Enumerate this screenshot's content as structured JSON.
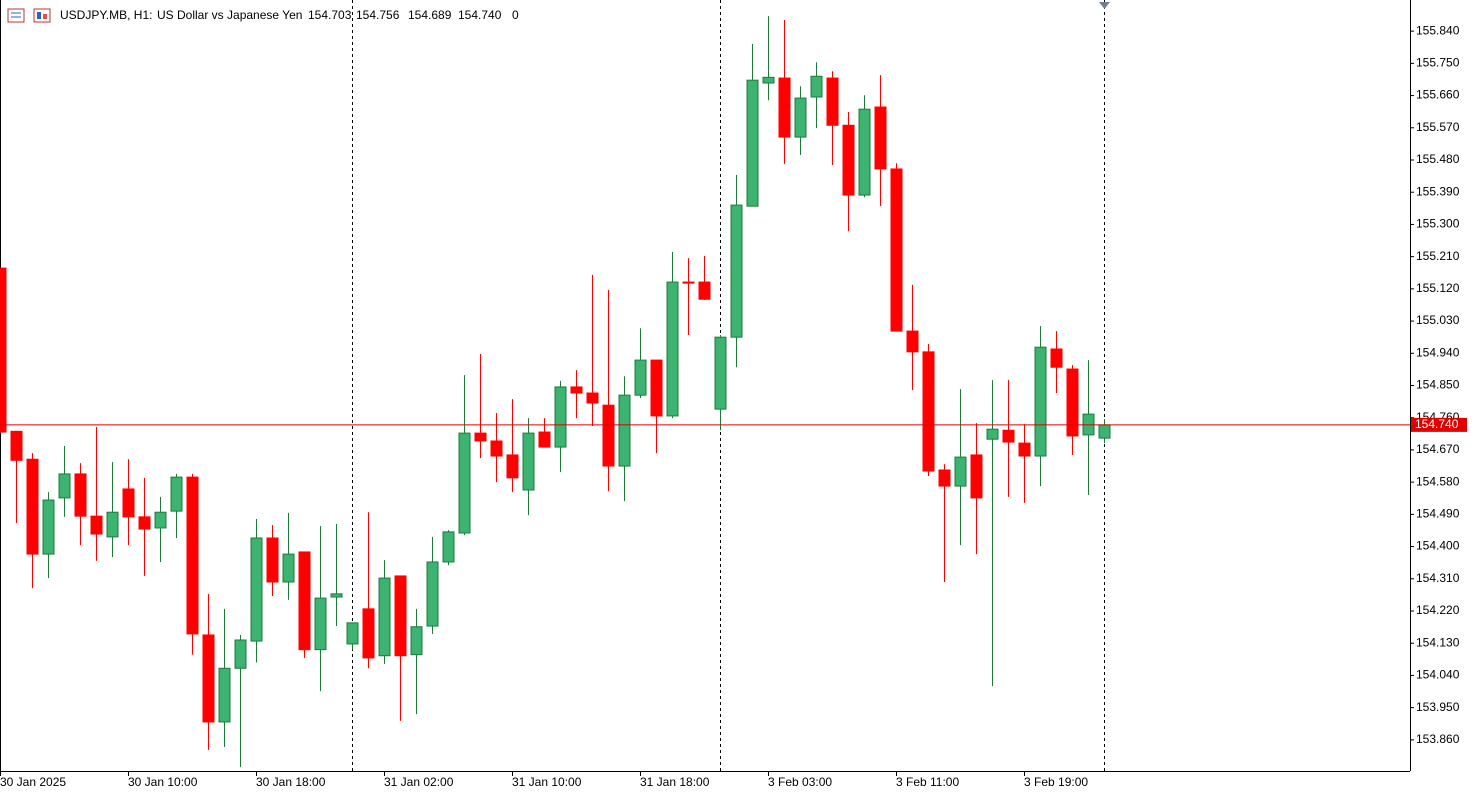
{
  "chart_data": {
    "type": "candlestick",
    "symbol": "USDJPY.MB, H1:",
    "description": "US Dollar vs Japanese Yen",
    "last_quote": {
      "open": "154.703",
      "high": "154.756",
      "low": "154.689",
      "close": "154.740"
    },
    "last_volume": 0,
    "categories": [
      "30 Jan 2025",
      null,
      null,
      null,
      null,
      null,
      null,
      null,
      "30 Jan 10:00",
      null,
      null,
      null,
      null,
      null,
      null,
      null,
      "30 Jan 18:00",
      null,
      null,
      null,
      null,
      null,
      null,
      null,
      "31 Jan 02:00",
      null,
      null,
      null,
      null,
      null,
      null,
      null,
      "31 Jan 10:00",
      null,
      null,
      null,
      null,
      null,
      null,
      null,
      "31 Jan 18:00",
      null,
      null,
      null,
      null,
      null,
      null,
      null,
      "3 Feb 03:00",
      null,
      null,
      null,
      null,
      null,
      null,
      null,
      "3 Feb 11:00",
      null,
      null,
      null,
      null,
      null,
      null,
      null,
      "3 Feb 19:00",
      null,
      null,
      null,
      null,
      null
    ],
    "open": [
      155.178,
      154.722,
      154.644,
      154.379,
      154.536,
      154.603,
      154.485,
      154.427,
      154.561,
      154.483,
      154.452,
      154.499,
      154.594,
      154.153,
      153.91,
      154.06,
      154.136,
      154.424,
      154.301,
      154.385,
      154.112,
      154.259,
      154.128,
      154.226,
      154.095,
      154.318,
      154.098,
      154.178,
      154.357,
      154.438,
      154.717,
      154.695,
      154.656,
      154.558,
      154.72,
      154.678,
      154.846,
      154.829,
      154.795,
      154.625,
      154.823,
      154.921,
      154.765,
      155.139,
      155.139,
      154.784,
      154.985,
      155.351,
      155.695,
      155.709,
      155.544,
      155.656,
      155.709,
      155.577,
      155.382,
      155.628,
      155.455,
      155.002,
      154.944,
      154.614,
      154.569,
      154.656,
      154.7,
      154.725,
      154.689,
      154.653,
      154.952,
      154.896,
      154.712,
      154.703
    ],
    "high": [
      155.178,
      154.722,
      154.661,
      154.552,
      154.681,
      154.633,
      154.734,
      154.636,
      154.644,
      154.592,
      154.539,
      154.603,
      154.603,
      154.268,
      154.226,
      154.153,
      154.477,
      154.46,
      154.494,
      154.385,
      154.457,
      154.463,
      154.187,
      154.496,
      154.362,
      154.318,
      154.226,
      154.427,
      154.446,
      154.879,
      154.938,
      154.773,
      154.812,
      154.759,
      154.759,
      154.863,
      154.893,
      155.159,
      155.117,
      154.876,
      155.01,
      154.921,
      155.223,
      155.206,
      155.212,
      154.991,
      155.438,
      155.804,
      155.882,
      155.871,
      155.686,
      155.753,
      155.728,
      155.614,
      155.661,
      155.717,
      155.471,
      155.131,
      154.966,
      154.63,
      154.84,
      154.745,
      154.865,
      154.865,
      154.742,
      155.016,
      155.002,
      154.907,
      154.921,
      154.756
    ],
    "low": [
      154.72,
      154.466,
      154.284,
      154.312,
      154.483,
      154.404,
      154.36,
      154.371,
      154.404,
      154.318,
      154.357,
      154.424,
      154.098,
      153.832,
      153.84,
      153.784,
      154.076,
      154.262,
      154.251,
      154.089,
      153.996,
      154.178,
      154.112,
      154.06,
      154.072,
      153.913,
      153.932,
      154.156,
      154.348,
      154.432,
      154.647,
      154.58,
      154.552,
      154.488,
      154.678,
      154.608,
      154.759,
      154.737,
      154.555,
      154.527,
      154.815,
      154.661,
      154.759,
      154.991,
      155.089,
      154.725,
      154.901,
      155.351,
      155.647,
      155.469,
      155.494,
      155.569,
      155.466,
      155.281,
      155.376,
      155.351,
      155.002,
      154.837,
      154.597,
      154.301,
      154.404,
      154.379,
      154.01,
      154.539,
      154.522,
      154.569,
      154.829,
      154.656,
      154.544,
      154.689
    ],
    "close": [
      154.72,
      154.641,
      154.379,
      154.53,
      154.603,
      154.485,
      154.435,
      154.496,
      154.483,
      154.449,
      154.496,
      154.594,
      154.156,
      153.91,
      154.06,
      154.139,
      154.424,
      154.301,
      154.379,
      154.112,
      154.256,
      154.268,
      154.187,
      154.089,
      154.312,
      154.095,
      154.176,
      154.357,
      154.441,
      154.717,
      154.695,
      154.653,
      154.592,
      154.717,
      154.678,
      154.846,
      154.829,
      154.801,
      154.625,
      154.823,
      154.921,
      154.765,
      155.139,
      155.136,
      155.091,
      154.985,
      155.354,
      155.703,
      155.711,
      155.544,
      155.653,
      155.714,
      155.577,
      155.382,
      155.622,
      155.455,
      155.002,
      154.944,
      154.611,
      154.569,
      154.65,
      154.536,
      154.728,
      154.692,
      154.653,
      154.957,
      154.901,
      154.709,
      154.77,
      154.74
    ],
    "bull_color": "#3cb371",
    "bull_edge": "#1e7a3c",
    "bear_color": "#ff0000",
    "price_line_color": "#e00000",
    "ylim": [
      153.773,
      155.927
    ],
    "yticks": [
      {
        "value": 155.84,
        "label": "155.840"
      },
      {
        "value": 155.75,
        "label": "155.750"
      },
      {
        "value": 155.66,
        "label": "155.660"
      },
      {
        "value": 155.57,
        "label": "155.570"
      },
      {
        "value": 155.48,
        "label": "155.480"
      },
      {
        "value": 155.39,
        "label": "155.390"
      },
      {
        "value": 155.3,
        "label": "155.300"
      },
      {
        "value": 155.21,
        "label": "155.210"
      },
      {
        "value": 155.12,
        "label": "155.120"
      },
      {
        "value": 155.03,
        "label": "155.030"
      },
      {
        "value": 154.94,
        "label": "154.940"
      },
      {
        "value": 154.85,
        "label": "154.850"
      },
      {
        "value": 154.76,
        "label": "154.760"
      },
      {
        "value": 154.67,
        "label": "154.670"
      },
      {
        "value": 154.58,
        "label": "154.580"
      },
      {
        "value": 154.49,
        "label": "154.490"
      },
      {
        "value": 154.4,
        "label": "154.400"
      },
      {
        "value": 154.31,
        "label": "154.310"
      },
      {
        "value": 154.22,
        "label": "154.220"
      },
      {
        "value": 154.13,
        "label": "154.130"
      },
      {
        "value": 154.04,
        "label": "154.040"
      },
      {
        "value": 153.95,
        "label": "153.950"
      },
      {
        "value": 153.86,
        "label": "153.860"
      }
    ],
    "grid": false
  }
}
